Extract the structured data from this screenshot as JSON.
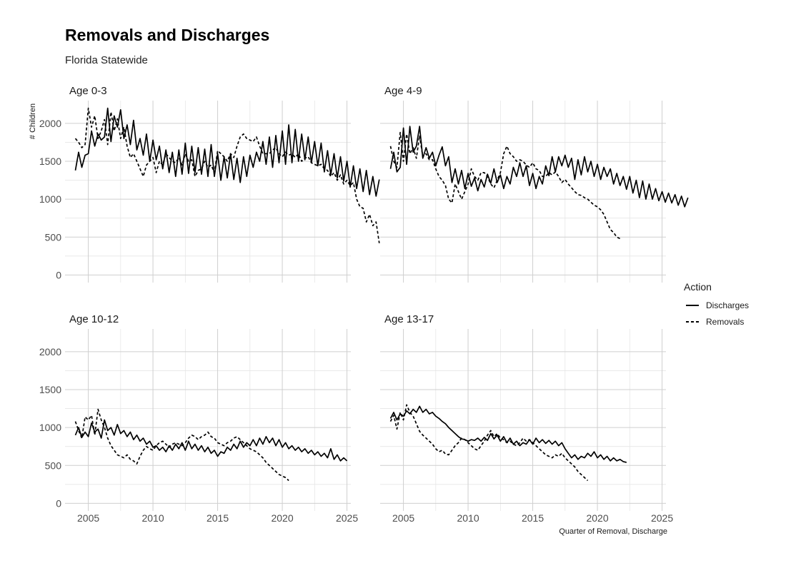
{
  "chart_data": {
    "type": "line",
    "title": "Removals and Discharges",
    "subtitle": "Florida Statewide",
    "ylabel": "# Children",
    "xlabel": "Quarter of Removal, Discharge",
    "ylim": [
      -100,
      2300
    ],
    "xlim": [
      2003.2,
      2025.3
    ],
    "y_ticks": [
      0,
      500,
      1000,
      1500,
      2000
    ],
    "x_ticks": [
      2005,
      2010,
      2015,
      2020,
      2025
    ],
    "legend": {
      "title": "Action",
      "position": "right",
      "items": [
        {
          "label": "Discharges",
          "style": "solid"
        },
        {
          "label": "Removals",
          "style": "dashed"
        }
      ]
    },
    "panels": [
      {
        "label": "Age 0-3",
        "x_start": 2004.0,
        "x_step": 0.25,
        "series": [
          {
            "name": "Discharges",
            "values": [
              1380,
              1620,
              1420,
              1580,
              1600,
              1900,
              1700,
              1860,
              1780,
              1820,
              2200,
              1760,
              2100,
              1950,
              2180,
              1800,
              1980,
              1720,
              2040,
              1650,
              1800,
              1580,
              1860,
              1500,
              1780,
              1520,
              1700,
              1400,
              1650,
              1350,
              1620,
              1300,
              1650,
              1330,
              1740,
              1340,
              1700,
              1350,
              1680,
              1330,
              1660,
              1300,
              1720,
              1300,
              1600,
              1250,
              1560,
              1280,
              1600,
              1260,
              1540,
              1220,
              1560,
              1300,
              1580,
              1420,
              1620,
              1500,
              1760,
              1460,
              1820,
              1420,
              1840,
              1480,
              1900,
              1460,
              1980,
              1480,
              1920,
              1500,
              1860,
              1520,
              1820,
              1480,
              1760,
              1440,
              1740,
              1360,
              1640,
              1320,
              1600,
              1280,
              1560,
              1240,
              1500,
              1160,
              1440,
              1140,
              1400,
              1100,
              1380,
              1060,
              1300,
              1040,
              1260
            ]
          },
          {
            "name": "Removals",
            "values": [
              1800,
              1750,
              1680,
              1720,
              2200,
              1950,
              2100,
              1800,
              1900,
              2050,
              1720,
              2150,
              1900,
              2060,
              1800,
              1950,
              1700,
              1550,
              1600,
              1500,
              1400,
              1300,
              1450,
              1500,
              1550,
              1350,
              1500,
              1450,
              1600,
              1550,
              1500,
              1480,
              1550,
              1450,
              1600,
              1500,
              1520,
              1300,
              1380,
              1400,
              1500,
              1420,
              1450,
              1350,
              1640,
              1600,
              1560,
              1500,
              1600,
              1550,
              1700,
              1820,
              1860,
              1800,
              1780,
              1760,
              1820,
              1700,
              1600,
              1600,
              1600,
              1650,
              1680,
              1600,
              1560,
              1620,
              1580,
              1600,
              1550,
              1600,
              1500,
              1540,
              1560,
              1480,
              1460,
              1440,
              1460,
              1400,
              1380,
              1300,
              1350,
              1250,
              1320,
              1200,
              1250,
              1180,
              1220,
              1000,
              900,
              880,
              700,
              800,
              650,
              700,
              420
            ]
          }
        ]
      },
      {
        "label": "Age 4-9",
        "x_start": 2004.0,
        "x_step": 0.25,
        "series": [
          {
            "name": "Discharges",
            "values": [
              1400,
              1620,
              1360,
              1420,
              1940,
              1460,
              1960,
              1620,
              1700,
              1960,
              1540,
              1680,
              1540,
              1620,
              1440,
              1580,
              1690,
              1440,
              1560,
              1220,
              1400,
              1200,
              1380,
              1140,
              1340,
              1170,
              1280,
              1110,
              1260,
              1160,
              1330,
              1210,
              1400,
              1220,
              1320,
              1140,
              1300,
              1200,
              1420,
              1300,
              1480,
              1300,
              1440,
              1180,
              1340,
              1140,
              1300,
              1200,
              1440,
              1310,
              1560,
              1360,
              1560,
              1440,
              1580,
              1420,
              1540,
              1260,
              1520,
              1320,
              1560,
              1360,
              1500,
              1300,
              1460,
              1260,
              1420,
              1300,
              1400,
              1200,
              1340,
              1180,
              1300,
              1130,
              1300,
              1080,
              1250,
              1020,
              1240,
              1000,
              1200,
              1000,
              1140,
              980,
              1100,
              960,
              1080,
              950,
              1060,
              920,
              1040,
              900,
              1020
            ]
          },
          {
            "name": "Removals",
            "values": [
              1700,
              1500,
              1420,
              1880,
              1500,
              1860,
              1600,
              1680,
              1540,
              1840,
              1560,
              1600,
              1520,
              1520,
              1400,
              1300,
              1250,
              1180,
              1000,
              950,
              1200,
              1100,
              1000,
              1100,
              1200,
              1400,
              1300,
              1250,
              1350,
              1350,
              1300,
              1200,
              1150,
              1250,
              1350,
              1600,
              1700,
              1600,
              1560,
              1500,
              1520,
              1500,
              1450,
              1420,
              1480,
              1400,
              1380,
              1300,
              1300,
              1350,
              1320,
              1360,
              1300,
              1220,
              1260,
              1200,
              1150,
              1100,
              1060,
              1050,
              1020,
              1000,
              960,
              920,
              900,
              860,
              800,
              700,
              600,
              560,
              500,
              480
            ]
          }
        ]
      },
      {
        "label": "Age 10-12",
        "x_start": 2004.0,
        "x_step": 0.25,
        "series": [
          {
            "name": "Discharges",
            "values": [
              900,
              1000,
              870,
              940,
              880,
              1060,
              940,
              980,
              860,
              1100,
              960,
              1000,
              900,
              1040,
              920,
              960,
              880,
              940,
              840,
              900,
              820,
              860,
              780,
              820,
              740,
              760,
              700,
              740,
              680,
              760,
              700,
              780,
              720,
              800,
              700,
              820,
              720,
              780,
              700,
              760,
              680,
              740,
              660,
              700,
              620,
              680,
              660,
              740,
              700,
              780,
              720,
              820,
              740,
              800,
              760,
              840,
              760,
              860,
              780,
              880,
              800,
              860,
              760,
              840,
              740,
              800,
              720,
              760,
              700,
              740,
              680,
              720,
              660,
              700,
              640,
              680,
              620,
              660,
              600,
              720,
              580,
              640,
              560,
              600,
              560
            ]
          },
          {
            "name": "Removals",
            "values": [
              1080,
              960,
              860,
              1140,
              1100,
              1160,
              900,
              1240,
              1100,
              1000,
              860,
              760,
              700,
              640,
              620,
              600,
              640,
              580,
              560,
              520,
              620,
              700,
              750,
              720,
              700,
              760,
              800,
              820,
              780,
              740,
              780,
              800,
              780,
              760,
              800,
              860,
              900,
              880,
              840,
              880,
              900,
              940,
              880,
              860,
              800,
              780,
              760,
              800,
              820,
              860,
              880,
              840,
              800,
              760,
              720,
              700,
              680,
              640,
              600,
              540,
              500,
              460,
              420,
              380,
              360,
              340,
              300
            ]
          }
        ]
      },
      {
        "label": "Age 13-17",
        "x_start": 2004.0,
        "x_step": 0.25,
        "series": [
          {
            "name": "Discharges",
            "values": [
              1120,
              1200,
              1100,
              1180,
              1150,
              1220,
              1180,
              1240,
              1200,
              1280,
              1200,
              1240,
              1180,
              1200,
              1150,
              1120,
              1080,
              1050,
              1000,
              960,
              920,
              880,
              850,
              840,
              820,
              840,
              830,
              860,
              820,
              870,
              830,
              920,
              850,
              900,
              820,
              880,
              800,
              860,
              780,
              820,
              760,
              800,
              780,
              840,
              780,
              860,
              800,
              840,
              790,
              830,
              780,
              820,
              760,
              800,
              720,
              660,
              600,
              640,
              580,
              620,
              600,
              660,
              620,
              680,
              600,
              640,
              580,
              620,
              560,
              600,
              560,
              580,
              550,
              540
            ]
          },
          {
            "name": "Removals",
            "values": [
              1080,
              1160,
              980,
              1200,
              1100,
              1300,
              1200,
              1150,
              1050,
              950,
              900,
              860,
              820,
              780,
              720,
              680,
              700,
              650,
              640,
              700,
              760,
              800,
              860,
              840,
              800,
              760,
              720,
              700,
              760,
              820,
              900,
              960,
              880,
              920,
              860,
              840,
              800,
              820,
              780,
              760,
              800,
              860,
              820,
              840,
              800,
              760,
              720,
              680,
              640,
              620,
              600,
              640,
              620,
              660,
              600,
              560,
              520,
              480,
              420,
              380,
              340,
              300
            ]
          }
        ]
      }
    ]
  }
}
